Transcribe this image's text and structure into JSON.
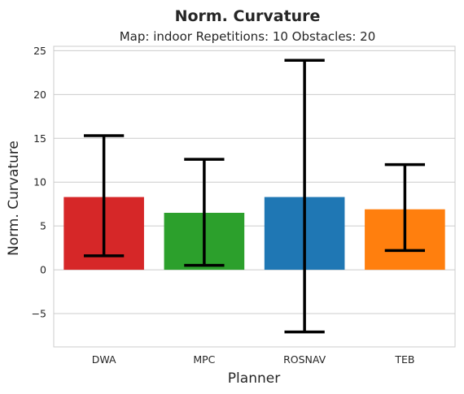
{
  "chart_data": {
    "type": "bar",
    "title": "Norm. Curvature",
    "subtitle": "Map: indoor Repetitions: 10 Obstacles: 20",
    "xlabel": "Planner",
    "ylabel": "Norm. Curvature",
    "ylim": [
      -8.8,
      25.5
    ],
    "yticks": [
      -5,
      0,
      5,
      10,
      15,
      20,
      25
    ],
    "ytick_labels": [
      "−5",
      "0",
      "5",
      "10",
      "15",
      "20",
      "25"
    ],
    "grid": true,
    "categories": [
      "DWA",
      "MPC",
      "ROSNAV",
      "TEB"
    ],
    "values": [
      8.3,
      6.5,
      8.3,
      6.9
    ],
    "error_low": [
      1.6,
      0.5,
      -7.1,
      2.2
    ],
    "error_high": [
      15.3,
      12.6,
      23.9,
      12.0
    ],
    "colors": [
      "#d62728",
      "#2ca02c",
      "#1f77b4",
      "#ff7f0e"
    ]
  }
}
